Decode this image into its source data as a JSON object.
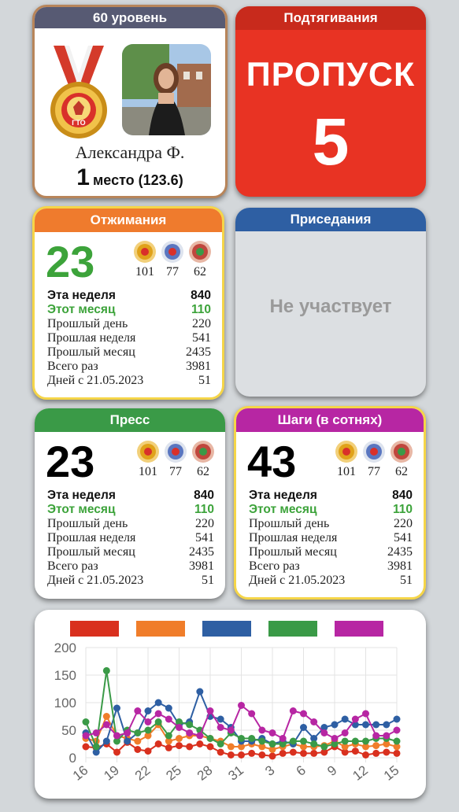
{
  "profile": {
    "level": "60 уровень",
    "name": "Александра Ф.",
    "place_number": "1",
    "place_text": "место (123.6)",
    "medal_text": "ГТО",
    "header_color": "#575a73",
    "border_color": "#b8855a"
  },
  "skip": {
    "title": "Подтягивания",
    "status": "ПРОПУСК",
    "count": "5",
    "color": "#e83323"
  },
  "badge_colors": [
    "#e0a21a",
    "#5a76c0",
    "#c0473d"
  ],
  "pushups": {
    "title": "Отжимания",
    "color": "#ef7b2d",
    "value": "23",
    "badges": [
      "101",
      "77",
      "62"
    ],
    "rows": [
      {
        "label": "Эта неделя",
        "value": "840"
      },
      {
        "label": "Этот месяц",
        "value": "110"
      },
      {
        "label": "Прошлый день",
        "value": "220"
      },
      {
        "label": "Прошлая неделя",
        "value": "541"
      },
      {
        "label": "Прошлый месяц",
        "value": "2435"
      },
      {
        "label": "Всего раз",
        "value": "3981"
      },
      {
        "label": "Дней с 21.05.2023",
        "value": "51"
      }
    ]
  },
  "squats": {
    "title": "Приседания",
    "color": "#2e5fa3",
    "status": "Не участвует"
  },
  "press": {
    "title": "Пресс",
    "color": "#3a9a47",
    "value": "23",
    "badges": [
      "101",
      "77",
      "62"
    ],
    "rows": [
      {
        "label": "Эта неделя",
        "value": "840"
      },
      {
        "label": "Этот месяц",
        "value": "110"
      },
      {
        "label": "Прошлый день",
        "value": "220"
      },
      {
        "label": "Прошлая неделя",
        "value": "541"
      },
      {
        "label": "Прошлый месяц",
        "value": "2435"
      },
      {
        "label": "Всего раз",
        "value": "3981"
      },
      {
        "label": "Дней с 21.05.2023",
        "value": "51"
      }
    ]
  },
  "steps": {
    "title": "Шаги (в сотнях)",
    "color": "#b726a3",
    "value": "43",
    "badges": [
      "101",
      "77",
      "62"
    ],
    "rows": [
      {
        "label": "Эта неделя",
        "value": "840"
      },
      {
        "label": "Этот месяц",
        "value": "110"
      },
      {
        "label": "Прошлый день",
        "value": "220"
      },
      {
        "label": "Прошлая неделя",
        "value": "541"
      },
      {
        "label": "Прошлый месяц",
        "value": "2435"
      },
      {
        "label": "Всего раз",
        "value": "3981"
      },
      {
        "label": "Дней с 21.05.2023",
        "value": "51"
      }
    ]
  },
  "chart_data": {
    "type": "line",
    "title": "",
    "xlabel": "",
    "ylabel": "",
    "ylim": [
      0,
      200
    ],
    "yticks": [
      0,
      50,
      100,
      150,
      200
    ],
    "grid": true,
    "legend": "top",
    "x": [
      "16",
      "17",
      "18",
      "19",
      "20",
      "21",
      "22",
      "23",
      "24",
      "25",
      "26",
      "27",
      "28",
      "29",
      "30",
      "31",
      "1",
      "2",
      "3",
      "4",
      "5",
      "6",
      "7",
      "8",
      "9",
      "10",
      "11",
      "12",
      "13",
      "14",
      "15"
    ],
    "xtick_labels": [
      "16",
      "19",
      "22",
      "25",
      "28",
      "31",
      "3",
      "6",
      "9",
      "12",
      "15"
    ],
    "series": [
      {
        "color": "#d9301e",
        "values": [
          20,
          18,
          25,
          10,
          28,
          15,
          12,
          25,
          18,
          22,
          20,
          25,
          20,
          10,
          5,
          5,
          8,
          5,
          3,
          8,
          10,
          8,
          8,
          10,
          20,
          10,
          12,
          5,
          8,
          10,
          8
        ]
      },
      {
        "color": "#f07d2a",
        "values": [
          35,
          30,
          75,
          40,
          35,
          30,
          40,
          60,
          30,
          35,
          40,
          40,
          35,
          30,
          20,
          20,
          25,
          20,
          15,
          20,
          25,
          20,
          20,
          22,
          30,
          20,
          25,
          20,
          22,
          25,
          20
        ]
      },
      {
        "color": "#2e5fa3",
        "values": [
          45,
          10,
          30,
          90,
          30,
          45,
          85,
          100,
          90,
          60,
          65,
          120,
          75,
          70,
          55,
          30,
          30,
          35,
          25,
          30,
          25,
          55,
          35,
          55,
          60,
          70,
          60,
          60,
          60,
          60,
          70
        ]
      },
      {
        "color": "#3a9a47",
        "values": [
          65,
          20,
          158,
          30,
          50,
          45,
          50,
          65,
          40,
          65,
          60,
          50,
          35,
          25,
          45,
          35,
          35,
          30,
          25,
          25,
          30,
          30,
          25,
          20,
          25,
          30,
          30,
          30,
          35,
          35,
          30
        ]
      },
      {
        "color": "#b726a3",
        "values": [
          40,
          45,
          60,
          40,
          45,
          85,
          65,
          80,
          70,
          55,
          45,
          40,
          85,
          55,
          50,
          95,
          80,
          50,
          45,
          35,
          85,
          80,
          65,
          45,
          35,
          45,
          70,
          80,
          40,
          40,
          50
        ]
      }
    ]
  }
}
